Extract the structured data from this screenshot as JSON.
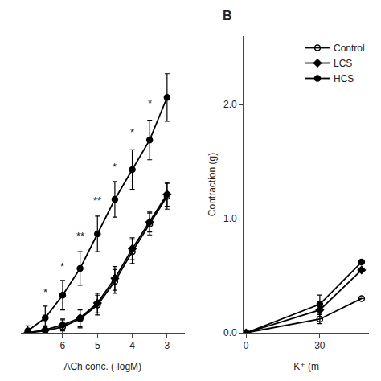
{
  "chart_data": [
    {
      "type": "line",
      "xlabel": "ACh conc. (-logM)",
      "xlim": [
        7.2,
        2.5
      ],
      "xticks": [
        6,
        5,
        4,
        3
      ],
      "ylim": [
        0,
        3
      ],
      "yticks": [],
      "tick_labels": "x",
      "grid": false,
      "x": [
        7,
        6.5,
        6,
        5.5,
        5,
        4.5,
        4,
        3.5,
        3
      ],
      "series": [
        {
          "name": "Control",
          "color": "black",
          "marker": "open circle",
          "values": [
            0.0,
            0.02,
            0.06,
            0.14,
            0.28,
            0.52,
            0.82,
            1.1,
            1.38
          ],
          "yerr": [
            0.02,
            0.04,
            0.07,
            0.09,
            0.1,
            0.12,
            0.12,
            0.11,
            0.13
          ]
        },
        {
          "name": "LCS",
          "color": "black",
          "marker": "diamond",
          "values": [
            0.0,
            0.03,
            0.08,
            0.15,
            0.3,
            0.55,
            0.85,
            1.12,
            1.4
          ],
          "yerr": [
            0.02,
            0.04,
            0.06,
            0.09,
            0.1,
            0.12,
            0.11,
            0.1,
            0.12
          ]
        },
        {
          "name": "HCS",
          "color": "black",
          "marker": "circle",
          "values": [
            0.02,
            0.15,
            0.38,
            0.65,
            1.0,
            1.35,
            1.65,
            1.95,
            2.38
          ],
          "yerr": [
            0.05,
            0.12,
            0.15,
            0.17,
            0.18,
            0.18,
            0.2,
            0.2,
            0.24
          ]
        }
      ],
      "annotations": [
        {
          "x": 6.5,
          "y": 0.33,
          "text": "*"
        },
        {
          "x": 6.0,
          "y": 0.59,
          "text": "*"
        },
        {
          "x": 5.5,
          "y": 0.9,
          "text": "**"
        },
        {
          "x": 5.0,
          "y": 1.26,
          "text": "**"
        },
        {
          "x": 4.5,
          "y": 1.6,
          "text": "*"
        },
        {
          "x": 4.0,
          "y": 1.95,
          "text": "*"
        },
        {
          "x": 3.5,
          "y": 2.24,
          "text": "*"
        }
      ]
    },
    {
      "type": "line",
      "title": "B",
      "xlabel": "K⁺ (m",
      "ylabel": "Contraction (g)",
      "xlim": [
        -1,
        50
      ],
      "xticks": [
        0,
        30
      ],
      "ylim": [
        0,
        2.6
      ],
      "yticks": [
        {
          "value": 0,
          "label": "0.0"
        },
        {
          "value": 1.0,
          "label": "1.0"
        },
        {
          "value": 2.0,
          "label": "2.0"
        }
      ],
      "grid": false,
      "legend": "upper right",
      "x": [
        0,
        30,
        47
      ],
      "series": [
        {
          "name": "Control",
          "color": "black",
          "marker": "open circle",
          "values": [
            0.0,
            0.12,
            0.3
          ],
          "yerr": [
            0.0,
            0.04,
            0.0
          ]
        },
        {
          "name": "LCS",
          "color": "black",
          "marker": "diamond",
          "values": [
            0.0,
            0.2,
            0.55
          ],
          "yerr": [
            0.0,
            0.06,
            0.0
          ]
        },
        {
          "name": "HCS",
          "color": "black",
          "marker": "circle",
          "values": [
            0.0,
            0.25,
            0.62
          ],
          "yerr": [
            0.0,
            0.08,
            0.0
          ]
        }
      ]
    }
  ]
}
